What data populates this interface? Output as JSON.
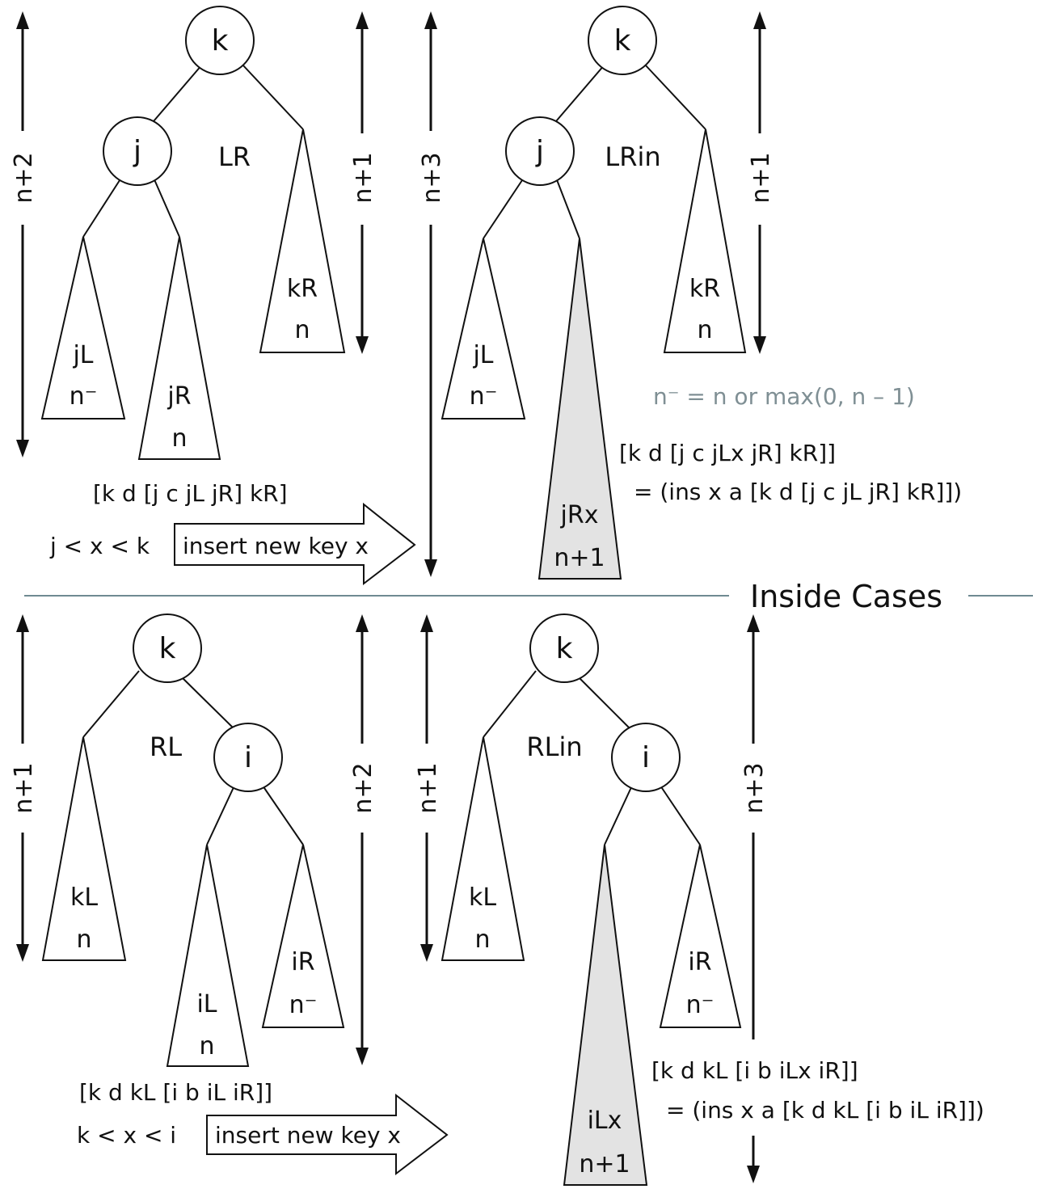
{
  "section_title": "Inside Cases",
  "note": "n⁻ = n or max(0, n – 1)",
  "arrow_label": "insert new key x",
  "cases": {
    "lr": {
      "label": "LR",
      "nodes": {
        "root": "k",
        "child": "j"
      },
      "trees": {
        "jL": {
          "name": "jL",
          "height": "n⁻"
        },
        "jR": {
          "name": "jR",
          "height": "n"
        },
        "kR": {
          "name": "kR",
          "height": "n"
        }
      },
      "heights": {
        "total": "n+2",
        "right": "n+1"
      },
      "expression": "[k d [j c jL jR] kR]",
      "condition": "j < x < k"
    },
    "lrin": {
      "label": "LRin",
      "nodes": {
        "root": "k",
        "child": "j"
      },
      "trees": {
        "jL": {
          "name": "jL",
          "height": "n⁻"
        },
        "jRx": {
          "name": "jRx",
          "height": "n+1"
        },
        "kR": {
          "name": "kR",
          "height": "n"
        }
      },
      "heights": {
        "total": "n+3",
        "right": "n+1"
      },
      "expression_1": "[k d [j c jLx jR] kR]]",
      "expression_2": "= (ins x a [k d [j c jL jR] kR]])"
    },
    "rl": {
      "label": "RL",
      "nodes": {
        "root": "k",
        "child": "i"
      },
      "trees": {
        "kL": {
          "name": "kL",
          "height": "n"
        },
        "iL": {
          "name": "iL",
          "height": "n"
        },
        "iR": {
          "name": "iR",
          "height": "n⁻"
        }
      },
      "heights": {
        "left": "n+1",
        "total": "n+2"
      },
      "expression": "[k d kL [i b iL iR]]",
      "condition": "k < x < i"
    },
    "rlin": {
      "label": "RLin",
      "nodes": {
        "root": "k",
        "child": "i"
      },
      "trees": {
        "kL": {
          "name": "kL",
          "height": "n"
        },
        "iLx": {
          "name": "iLx",
          "height": "n+1"
        },
        "iR": {
          "name": "iR",
          "height": "n⁻"
        }
      },
      "heights": {
        "left": "n+1",
        "total": "n+3"
      },
      "expression_1": "[k d kL [i b iLx iR]]",
      "expression_2": "= (ins x a [k d kL [i b iL iR]])"
    }
  }
}
